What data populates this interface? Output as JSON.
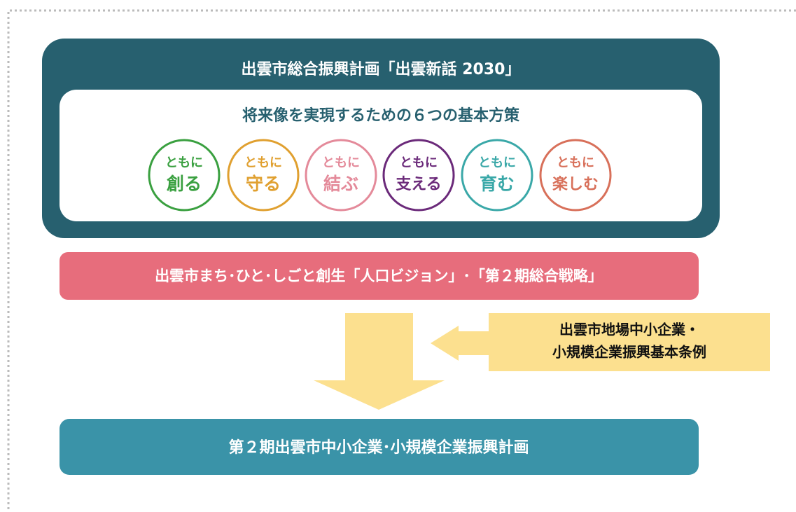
{
  "plan": {
    "title": "出雲市総合振興計画「出雲新話 2030」",
    "subtitle": "将来像を実現するための６つの基本方策",
    "policies": [
      {
        "top": "ともに",
        "word": "創る"
      },
      {
        "top": "ともに",
        "word": "守る"
      },
      {
        "top": "ともに",
        "word": "結ぶ"
      },
      {
        "top": "ともに",
        "word": "支える"
      },
      {
        "top": "ともに",
        "word": "育む"
      },
      {
        "top": "ともに",
        "word": "楽しむ"
      }
    ]
  },
  "strategy": "出雲市まち･ひと･しごと創生「人口ビジョン」･「第２期総合戦略」",
  "ordinance": {
    "lines": [
      "出雲市地場中小企業・",
      "小規模企業振興基本条例"
    ]
  },
  "result": "第２期出雲市中小企業･小規模企業振興計画"
}
